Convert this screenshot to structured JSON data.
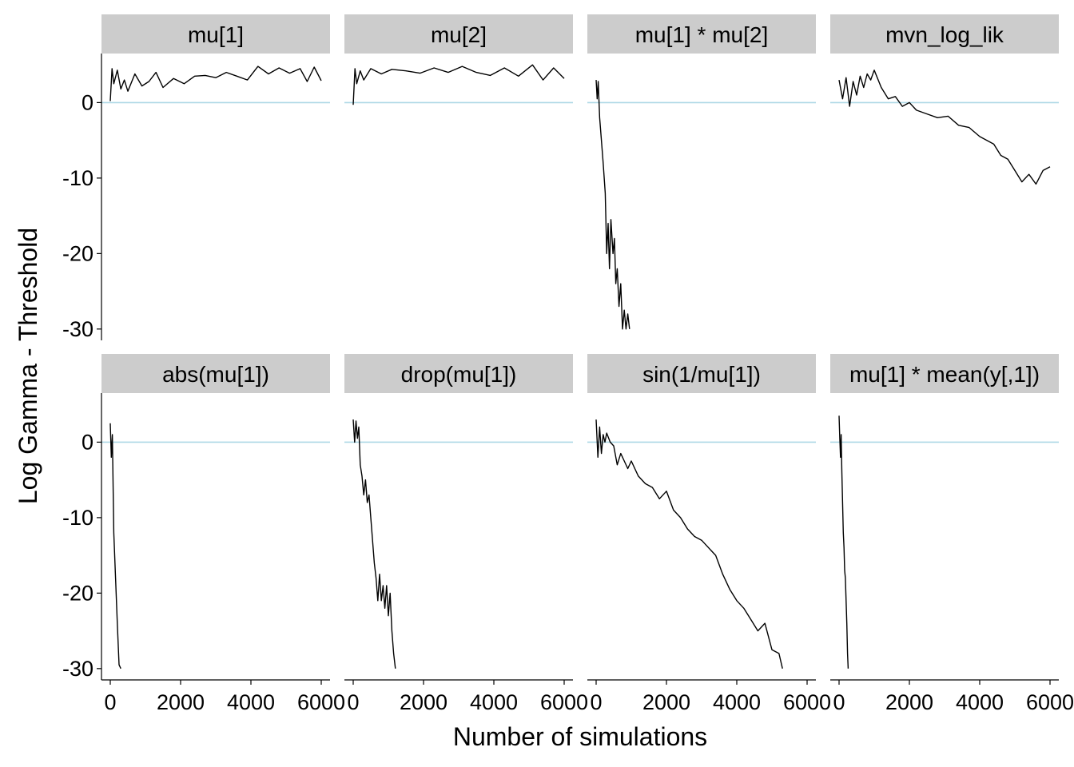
{
  "chart_data": {
    "type": "line",
    "layout": "facet-grid 2x4",
    "xlabel": "Number of simulations",
    "ylabel": "Log Gamma - Threshold",
    "xlim": [
      -250,
      6250
    ],
    "ylim": [
      -31.5,
      6.5
    ],
    "xticks": [
      0,
      2000,
      4000,
      6000
    ],
    "xtick_labels": [
      "0",
      "2000",
      "4000",
      "6000"
    ],
    "yticks": [
      0,
      -10,
      -20,
      -30
    ],
    "ytick_labels": [
      "0",
      "-10",
      "-20",
      "-30"
    ],
    "reference_line": 0,
    "colors": {
      "line": "#000000",
      "reference": "#add8e6",
      "strip": "#cccccc",
      "axis": "#000000"
    },
    "grid": false,
    "panels": [
      {
        "label": "mu[1]",
        "x": [
          0,
          50,
          100,
          200,
          300,
          400,
          500,
          700,
          900,
          1100,
          1300,
          1500,
          1800,
          2100,
          2400,
          2700,
          3000,
          3300,
          3600,
          3900,
          4200,
          4500,
          4800,
          5100,
          5400,
          5600,
          5800,
          6000
        ],
        "y": [
          0.2,
          4.5,
          2.5,
          4.3,
          1.8,
          3.0,
          1.5,
          3.8,
          2.2,
          2.8,
          4.0,
          2.0,
          3.2,
          2.5,
          3.5,
          3.6,
          3.3,
          4.0,
          3.5,
          3.0,
          4.8,
          3.8,
          4.6,
          3.9,
          4.5,
          2.8,
          4.7,
          2.9
        ]
      },
      {
        "label": "mu[2]",
        "x": [
          0,
          50,
          100,
          200,
          300,
          500,
          800,
          1100,
          1500,
          1900,
          2300,
          2700,
          3100,
          3500,
          3900,
          4300,
          4700,
          5100,
          5400,
          5700,
          6000
        ],
        "y": [
          -0.3,
          4.5,
          2.5,
          4.2,
          3.0,
          4.5,
          3.8,
          4.4,
          4.2,
          3.9,
          4.6,
          4.0,
          4.8,
          4.0,
          3.6,
          4.6,
          3.5,
          5.0,
          3.0,
          4.6,
          3.2
        ]
      },
      {
        "label": "mu[1] * mu[2]",
        "x": [
          0,
          30,
          60,
          100,
          150,
          200,
          260,
          300,
          340,
          380,
          420,
          480,
          520,
          560,
          600,
          650,
          700,
          750,
          800,
          850,
          900,
          950
        ],
        "y": [
          3.0,
          0.5,
          2.8,
          -2.0,
          -5.0,
          -8.0,
          -12.0,
          -20.0,
          -16.0,
          -22.0,
          -15.5,
          -20.0,
          -18.0,
          -24.0,
          -22.0,
          -27.0,
          -24.0,
          -30.0,
          -27.5,
          -30.0,
          -28.0,
          -30.0
        ]
      },
      {
        "label": "mvn_log_lik",
        "x": [
          0,
          100,
          200,
          300,
          400,
          500,
          600,
          700,
          800,
          900,
          1000,
          1200,
          1400,
          1600,
          1800,
          2000,
          2200,
          2500,
          2800,
          3100,
          3400,
          3700,
          4000,
          4200,
          4400,
          4600,
          4800,
          5000,
          5200,
          5400,
          5600,
          5800,
          6000
        ],
        "y": [
          3.0,
          0.5,
          3.3,
          -0.5,
          2.8,
          1.0,
          3.5,
          2.0,
          3.8,
          3.0,
          4.3,
          2.0,
          0.5,
          0.8,
          -0.5,
          0.0,
          -1.0,
          -1.5,
          -2.0,
          -1.8,
          -3.0,
          -3.3,
          -4.5,
          -5.0,
          -5.5,
          -7.0,
          -7.5,
          -9.0,
          -10.5,
          -9.5,
          -10.8,
          -9.0,
          -8.5
        ]
      },
      {
        "label": "abs(mu[1])",
        "x": [
          0,
          30,
          60,
          100,
          150,
          200,
          250,
          300
        ],
        "y": [
          2.5,
          -2.0,
          1.0,
          -12.0,
          -18.0,
          -24.0,
          -29.5,
          -30.0
        ]
      },
      {
        "label": "drop(mu[1])",
        "x": [
          0,
          40,
          80,
          120,
          160,
          200,
          250,
          300,
          350,
          400,
          450,
          500,
          550,
          600,
          650,
          700,
          750,
          800,
          850,
          900,
          950,
          1000,
          1050,
          1100,
          1150,
          1200
        ],
        "y": [
          3.0,
          0.0,
          2.8,
          0.5,
          2.0,
          -3.0,
          -4.5,
          -7.0,
          -5.0,
          -8.0,
          -7.0,
          -10.0,
          -13.0,
          -16.0,
          -18.0,
          -21.0,
          -17.5,
          -21.0,
          -19.0,
          -22.0,
          -19.0,
          -23.0,
          -20.0,
          -25.0,
          -28.0,
          -30.0
        ]
      },
      {
        "label": "sin(1/mu[1])",
        "x": [
          0,
          50,
          100,
          150,
          200,
          250,
          300,
          400,
          500,
          600,
          700,
          800,
          900,
          1000,
          1200,
          1400,
          1600,
          1800,
          2000,
          2200,
          2400,
          2600,
          2800,
          3000,
          3200,
          3400,
          3600,
          3800,
          4000,
          4200,
          4400,
          4600,
          4800,
          5000,
          5200,
          5300
        ],
        "y": [
          3.0,
          -2.0,
          2.0,
          -1.5,
          1.0,
          0.0,
          1.2,
          0.0,
          -0.5,
          -3.0,
          -1.5,
          -2.5,
          -3.5,
          -2.5,
          -4.5,
          -5.5,
          -6.0,
          -7.5,
          -6.5,
          -9.0,
          -10.0,
          -11.5,
          -12.5,
          -13.0,
          -14.0,
          -15.0,
          -17.5,
          -19.5,
          -21.0,
          -22.0,
          -23.5,
          -25.0,
          -24.0,
          -27.5,
          -28.0,
          -30.0
        ]
      },
      {
        "label": "mu[1] * mean(y[,1])",
        "x": [
          0,
          20,
          40,
          60,
          80,
          100,
          120,
          140,
          160,
          180,
          200,
          220,
          240,
          260
        ],
        "y": [
          3.5,
          0.5,
          -2.0,
          1.0,
          -4.0,
          -8.0,
          -12.0,
          -14.0,
          -17.0,
          -18.0,
          -21.0,
          -24.0,
          -28.0,
          -30.0
        ]
      }
    ]
  }
}
